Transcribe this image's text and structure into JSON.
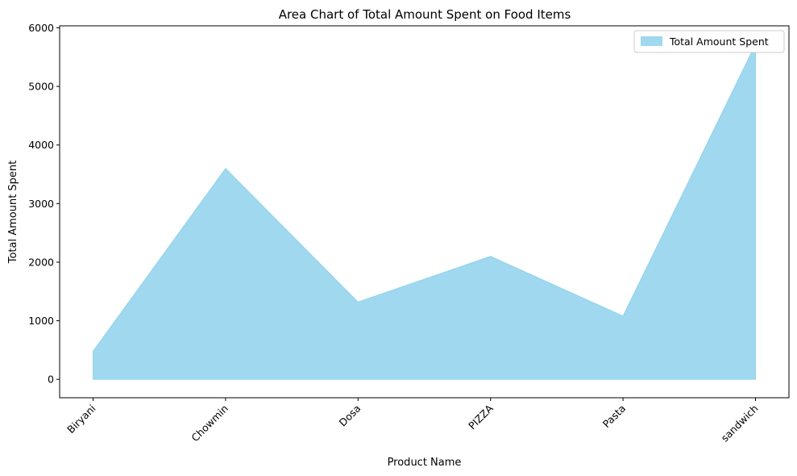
{
  "chart_data": {
    "type": "area",
    "title": "Area Chart of Total Amount Spent on Food Items",
    "xlabel": "Product Name",
    "ylabel": "Total Amount Spent",
    "categories": [
      "Biryani",
      "Chowmin",
      "Dosa",
      "PIZZA",
      "Pasta",
      "sandwich"
    ],
    "series": [
      {
        "name": "Total Amount Spent",
        "values": [
          480,
          3600,
          1320,
          2100,
          1080,
          5720
        ],
        "color": "#87ceeb",
        "opacity": 0.8
      }
    ],
    "yticks": [
      0,
      1000,
      2000,
      3000,
      4000,
      5000,
      6000
    ],
    "ylim": [
      -314,
      6034
    ],
    "grid": false,
    "legend": "top-right",
    "xtick_rotation": 45
  }
}
